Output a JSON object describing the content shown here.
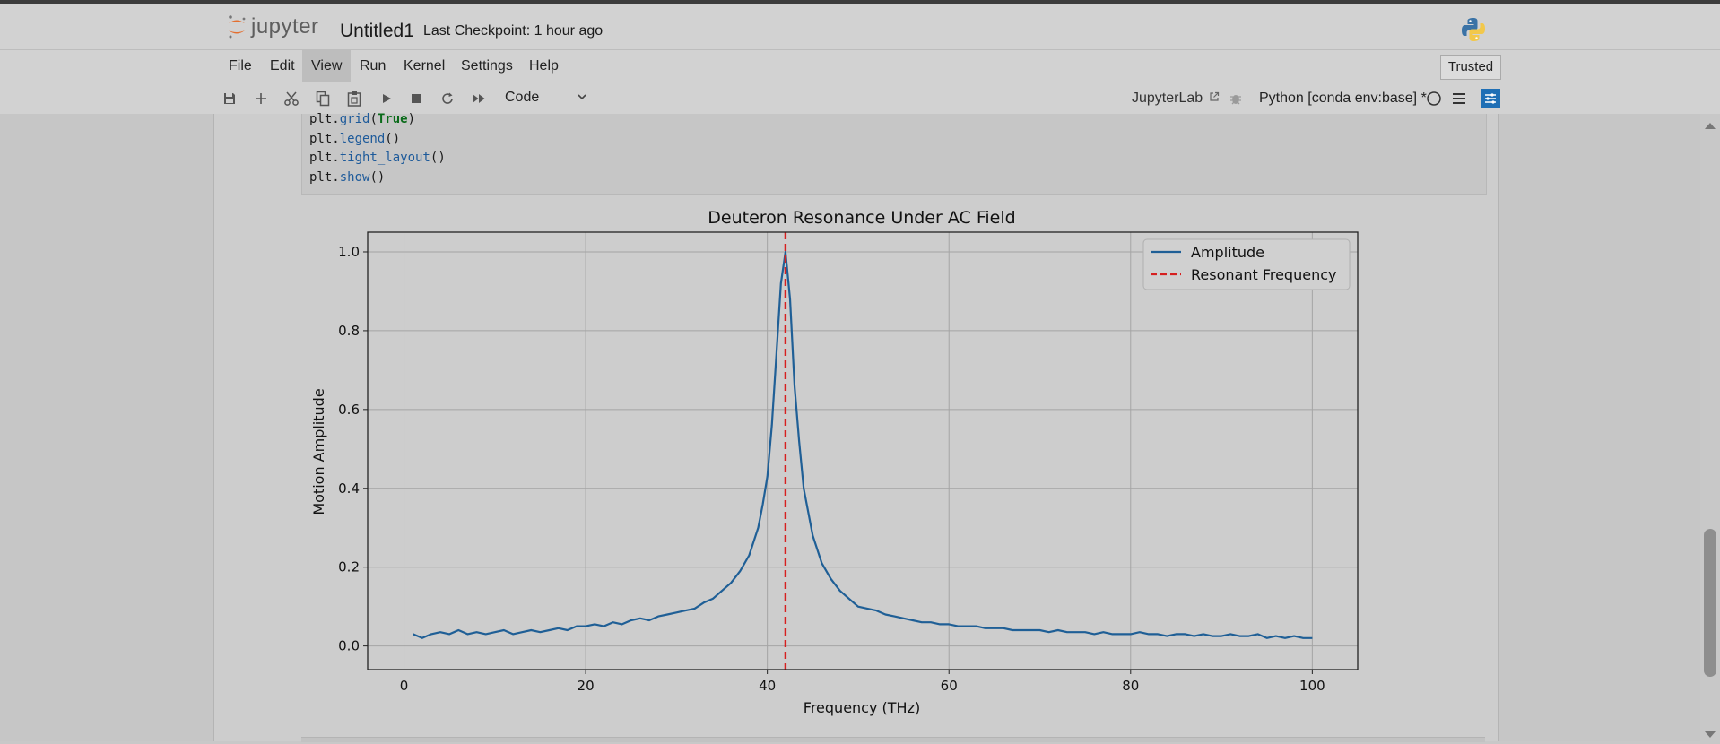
{
  "app": {
    "logo_text": "jupyter",
    "notebook_title": "Untitled1",
    "checkpoint": "Last Checkpoint: 1 hour ago"
  },
  "menu": {
    "items": [
      "File",
      "Edit",
      "View",
      "Run",
      "Kernel",
      "Settings",
      "Help"
    ],
    "active": "View",
    "trusted": "Trusted"
  },
  "toolbar": {
    "icons": [
      "save-icon",
      "add-icon",
      "cut-icon",
      "copy-icon",
      "paste-icon",
      "run-icon",
      "stop-icon",
      "restart-icon",
      "fast-forward-icon"
    ],
    "cell_type": "Code",
    "jupyterlab_link": "JupyterLab",
    "kernel_name": "Python [conda env:base] *"
  },
  "code": {
    "lines": [
      {
        "obj": "plt.",
        "fn": "grid",
        "arg": "True",
        "close": ")"
      },
      {
        "obj": "plt.",
        "fn": "legend",
        "arg": "",
        "close": ")"
      },
      {
        "obj": "plt.",
        "fn": "tight_layout",
        "arg": "",
        "close": ")"
      },
      {
        "obj": "plt.",
        "fn": "show",
        "arg": "",
        "close": ")"
      }
    ]
  },
  "chart_data": {
    "type": "line",
    "title": "Deuteron Resonance Under AC Field",
    "xlabel": "Frequency (THz)",
    "ylabel": "Motion Amplitude",
    "xlim": [
      -4,
      105
    ],
    "ylim": [
      -0.06,
      1.05
    ],
    "xticks": [
      0,
      20,
      40,
      60,
      80,
      100
    ],
    "xtick_labels": [
      "0",
      "20",
      "40",
      "60",
      "80",
      "100"
    ],
    "yticks": [
      0.0,
      0.2,
      0.4,
      0.6,
      0.8,
      1.0
    ],
    "ytick_labels": [
      "0.0",
      "0.2",
      "0.4",
      "0.6",
      "0.8",
      "1.0"
    ],
    "grid": true,
    "legend_position": "top-right",
    "series": [
      {
        "name": "Amplitude",
        "style": "solid",
        "color": "#1f5f96",
        "x": [
          1,
          2,
          3,
          4,
          5,
          6,
          7,
          8,
          9,
          10,
          11,
          12,
          13,
          14,
          15,
          16,
          17,
          18,
          19,
          20,
          21,
          22,
          23,
          24,
          25,
          26,
          27,
          28,
          29,
          30,
          31,
          32,
          33,
          34,
          35,
          36,
          37,
          38,
          39,
          39.5,
          40,
          40.5,
          41,
          41.5,
          42,
          42.5,
          43,
          43.5,
          44,
          45,
          46,
          47,
          48,
          49,
          50,
          51,
          52,
          53,
          54,
          55,
          56,
          57,
          58,
          59,
          60,
          61,
          62,
          63,
          64,
          65,
          66,
          67,
          68,
          69,
          70,
          71,
          72,
          73,
          74,
          75,
          76,
          77,
          78,
          79,
          80,
          81,
          82,
          83,
          84,
          85,
          86,
          87,
          88,
          89,
          90,
          91,
          92,
          93,
          94,
          95,
          96,
          97,
          98,
          99,
          100
        ],
        "y": [
          0.03,
          0.02,
          0.03,
          0.035,
          0.03,
          0.04,
          0.03,
          0.035,
          0.03,
          0.035,
          0.04,
          0.03,
          0.035,
          0.04,
          0.035,
          0.04,
          0.045,
          0.04,
          0.05,
          0.05,
          0.055,
          0.05,
          0.06,
          0.055,
          0.065,
          0.07,
          0.065,
          0.075,
          0.08,
          0.085,
          0.09,
          0.095,
          0.11,
          0.12,
          0.14,
          0.16,
          0.19,
          0.23,
          0.3,
          0.36,
          0.43,
          0.56,
          0.74,
          0.92,
          1.0,
          0.88,
          0.66,
          0.52,
          0.4,
          0.28,
          0.21,
          0.17,
          0.14,
          0.12,
          0.1,
          0.095,
          0.09,
          0.08,
          0.075,
          0.07,
          0.065,
          0.06,
          0.06,
          0.055,
          0.055,
          0.05,
          0.05,
          0.05,
          0.045,
          0.045,
          0.045,
          0.04,
          0.04,
          0.04,
          0.04,
          0.035,
          0.04,
          0.035,
          0.035,
          0.035,
          0.03,
          0.035,
          0.03,
          0.03,
          0.03,
          0.035,
          0.03,
          0.03,
          0.025,
          0.03,
          0.03,
          0.025,
          0.03,
          0.025,
          0.025,
          0.03,
          0.025,
          0.025,
          0.03,
          0.02,
          0.025,
          0.02,
          0.025,
          0.02,
          0.02
        ]
      },
      {
        "name": "Resonant Frequency",
        "style": "dashed",
        "color": "#d62020",
        "vline_x": 42
      }
    ]
  }
}
